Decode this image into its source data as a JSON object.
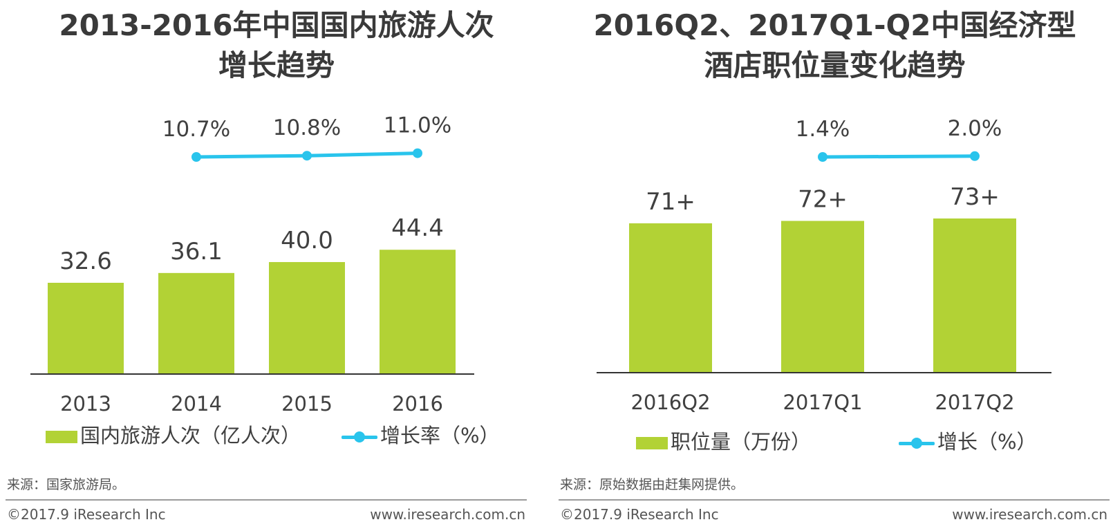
{
  "colors": {
    "bar": "#B2D235",
    "line": "#29C4EC",
    "axis": "#333333",
    "text": "#404040"
  },
  "chart_data": [
    {
      "type": "bar",
      "title_lines": [
        "2013-2016年中国国内旅游人次",
        "增长趋势"
      ],
      "categories": [
        "2013",
        "2014",
        "2015",
        "2016"
      ],
      "series": [
        {
          "name": "国内旅游人次（亿人次）",
          "type": "bar",
          "values": [
            32.6,
            36.1,
            40.0,
            44.4
          ],
          "labels": [
            "32.6",
            "36.1",
            "40.0",
            "44.4"
          ]
        },
        {
          "name": "增长率（%）",
          "type": "line",
          "x": [
            "2014",
            "2015",
            "2016"
          ],
          "values": [
            10.7,
            10.8,
            11.0
          ],
          "labels": [
            "10.7%",
            "10.8%",
            "11.0%"
          ]
        }
      ],
      "legend_position": "bottom",
      "grid": false
    },
    {
      "type": "bar",
      "title_lines": [
        "2016Q2、2017Q1-Q2中国经济型",
        "酒店职位量变化趋势"
      ],
      "categories": [
        "2016Q2",
        "2017Q1",
        "2017Q2"
      ],
      "series": [
        {
          "name": "职位量（万份）",
          "type": "bar",
          "values": [
            71,
            72,
            73
          ],
          "labels": [
            "71+",
            "72+",
            "73+"
          ]
        },
        {
          "name": "增长（%）",
          "type": "line",
          "x": [
            "2017Q1",
            "2017Q2"
          ],
          "values": [
            1.4,
            2.0
          ],
          "labels": [
            "1.4%",
            "2.0%"
          ]
        }
      ],
      "legend_position": "bottom",
      "grid": false
    }
  ],
  "sources": [
    "来源：国家旅游局。",
    "来源：原始数据由赶集网提供。"
  ],
  "footer": {
    "copyright": "©2017.9 iResearch Inc",
    "website": "www.iresearch.com.cn"
  }
}
